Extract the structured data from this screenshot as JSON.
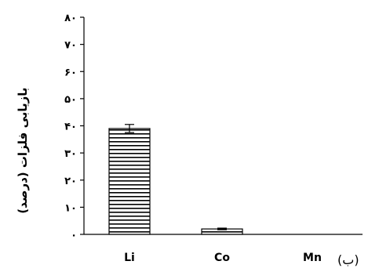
{
  "chart_data": {
    "type": "bar",
    "categories": [
      "Li",
      "Co",
      "Mn"
    ],
    "values": [
      39,
      2,
      0
    ],
    "error": [
      1.5,
      0.3,
      0
    ],
    "ylabel": "بازیابی فلزات (درصد)",
    "ylim": [
      0,
      80
    ],
    "yticks": [
      0,
      10,
      20,
      30,
      40,
      50,
      60,
      70,
      80
    ],
    "ytick_labels": [
      "۰",
      "۱۰",
      "۲۰",
      "۳۰",
      "۴۰",
      "۵۰",
      "۶۰",
      "۷۰",
      "۸۰"
    ],
    "panel_label": "(ب)",
    "grid": false,
    "legend": "none",
    "colors": {
      "bar_fill": "#ffffff",
      "bar_stripe": "#000000",
      "axis": "#000000"
    }
  }
}
